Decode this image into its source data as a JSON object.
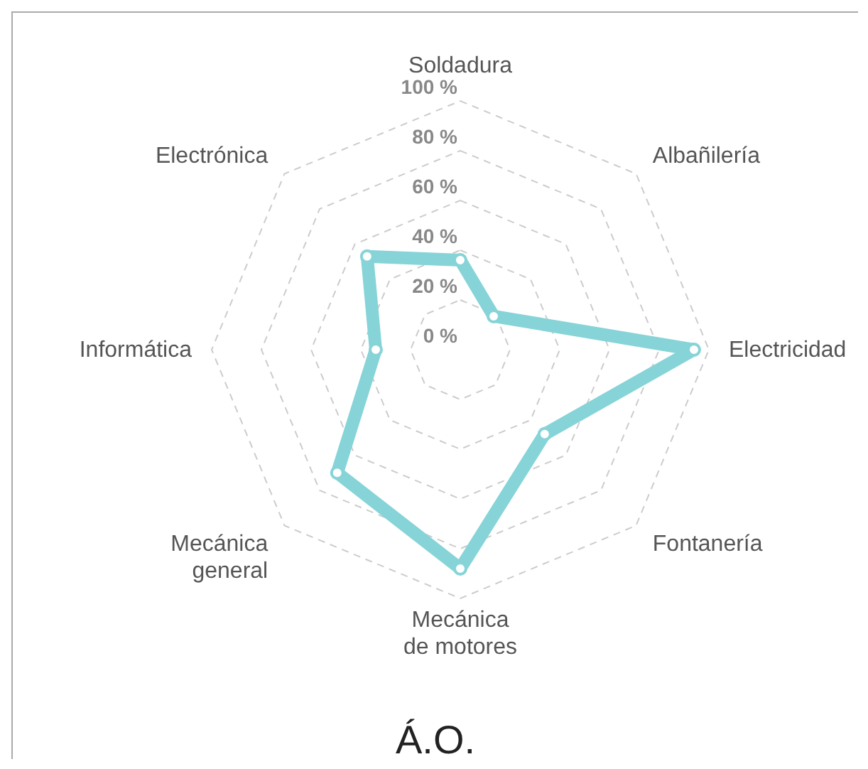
{
  "chart_data": {
    "type": "radar",
    "title": "Á.O.",
    "categories": [
      "Soldadura",
      "Albañilería",
      "Electricidad",
      "Fontanería",
      "Mecánica de motores",
      "Mecánica general",
      "Informática",
      "Electrónica"
    ],
    "series": [
      {
        "color": "#86d4d8",
        "values": [
          36,
          19,
          94,
          48,
          88,
          70,
          34,
          53
        ]
      }
    ],
    "ylim": [
      0,
      100
    ],
    "yticks": [
      {
        "value": 0,
        "label": "0 %"
      },
      {
        "value": 20,
        "label": "20 %"
      },
      {
        "value": 40,
        "label": "40 %"
      },
      {
        "value": 60,
        "label": "60 %"
      },
      {
        "value": 80,
        "label": "80 %"
      },
      {
        "value": 100,
        "label": "100 %"
      }
    ],
    "grid": true,
    "marker": "circle",
    "legend": false
  }
}
